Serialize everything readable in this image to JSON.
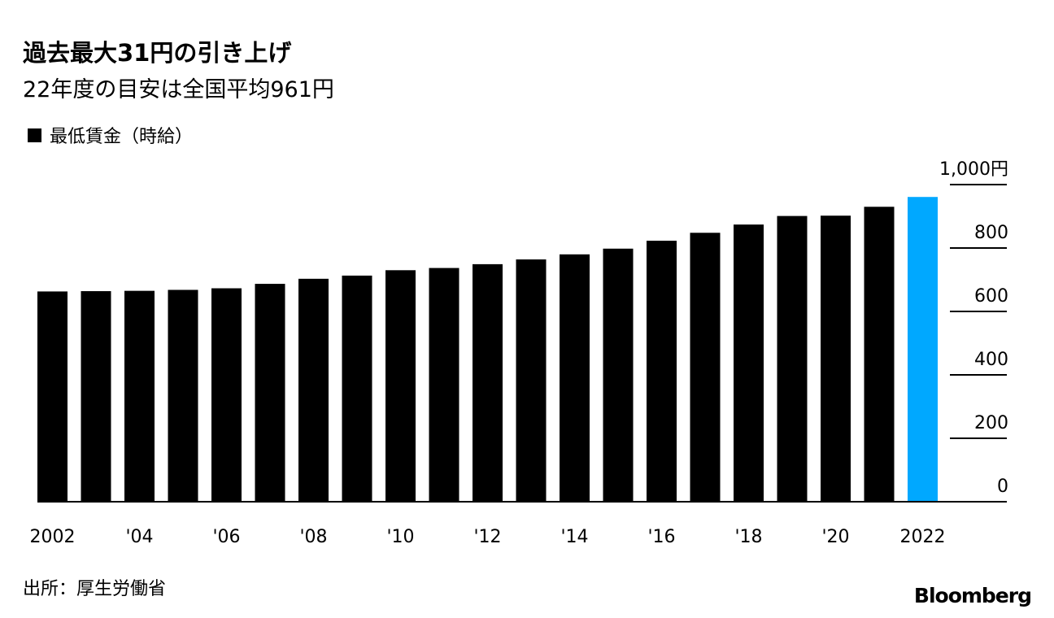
{
  "chart_data": {
    "type": "bar",
    "title": "過去最大31円の引き上げ",
    "subtitle": "22年度の目安は全国平均961円",
    "legend": [
      "最低賃金（時給）"
    ],
    "legend_placement": "top-left",
    "x": [
      2002,
      2003,
      2004,
      2005,
      2006,
      2007,
      2008,
      2009,
      2010,
      2011,
      2012,
      2013,
      2014,
      2015,
      2016,
      2017,
      2018,
      2019,
      2020,
      2021,
      2022
    ],
    "values": [
      663,
      664,
      665,
      668,
      673,
      687,
      703,
      713,
      730,
      737,
      749,
      764,
      780,
      798,
      823,
      848,
      874,
      901,
      902,
      930,
      961
    ],
    "highlight_index": 20,
    "colors": {
      "default": "#000000",
      "highlight": "#00a8ff"
    },
    "x_tick_labels": [
      "2002",
      "'04",
      "'06",
      "'08",
      "'10",
      "'12",
      "'14",
      "'16",
      "'18",
      "'20",
      "2022"
    ],
    "y_ticks": [
      0,
      200,
      400,
      600,
      800,
      1000
    ],
    "y_tick_labels": [
      "0",
      "200",
      "400",
      "600",
      "800",
      "1,000円"
    ],
    "ylim": [
      0,
      1000
    ],
    "xlabel": "",
    "ylabel": ""
  },
  "source": "出所：厚生労働省",
  "logo": "Bloomberg"
}
